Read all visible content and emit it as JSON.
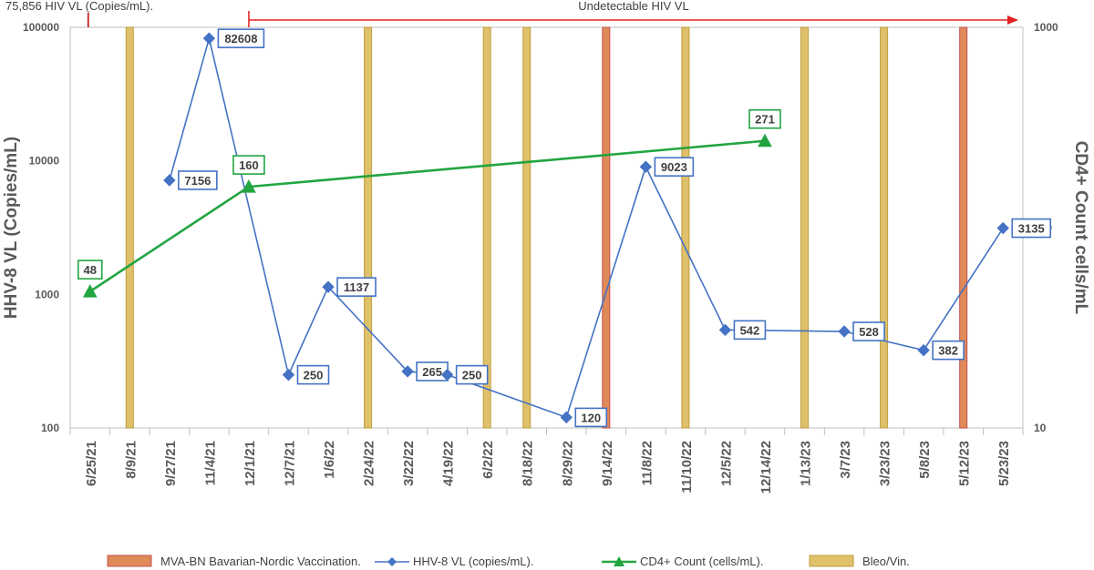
{
  "chart_data": {
    "type": "line",
    "categories": [
      "6/25/21",
      "8/9/21",
      "9/27/21",
      "11/4/21",
      "12/1/21",
      "12/7/21",
      "1/6/22",
      "2/24/22",
      "3/22/22",
      "4/19/22",
      "6/2/22",
      "8/18/22",
      "8/29/22",
      "9/14/22",
      "11/8/22",
      "11/10/22",
      "12/5/22",
      "12/14/22",
      "1/13/23",
      "3/7/23",
      "3/23/23",
      "5/8/23",
      "5/12/23",
      "5/23/23"
    ],
    "ylabel": "HHV-8 VL (Copies/mL)",
    "y2label": "CD4+ Count cells/mL",
    "yscale": "log",
    "ylim": [
      100,
      100000
    ],
    "yticks": [
      "100",
      "1000",
      "10000",
      "100000"
    ],
    "y2scale": "log",
    "y2lim": [
      10,
      1000
    ],
    "y2ticks": [
      "10",
      "100",
      "1000"
    ],
    "grid": false,
    "legend_position": "bottom",
    "series": [
      {
        "name": "HHV-8 VL (copies/mL).",
        "axis": "left",
        "color": "#4472C4",
        "marker": "diamond",
        "points": [
          {
            "x": "9/27/21",
            "y": 7156,
            "label": "7156"
          },
          {
            "x": "11/4/21",
            "y": 82608,
            "label": "82608"
          },
          {
            "x": "12/7/21",
            "y": 250,
            "label": "250"
          },
          {
            "x": "1/6/22",
            "y": 1137,
            "label": "1137"
          },
          {
            "x": "3/22/22",
            "y": 265,
            "label": "265"
          },
          {
            "x": "4/19/22",
            "y": 250,
            "label": "250"
          },
          {
            "x": "8/29/22",
            "y": 120,
            "label": "120"
          },
          {
            "x": "11/8/22",
            "y": 9023,
            "label": "9023"
          },
          {
            "x": "12/5/22",
            "y": 542,
            "label": "542"
          },
          {
            "x": "3/7/23",
            "y": 528,
            "label": "528"
          },
          {
            "x": "5/8/23",
            "y": 382,
            "label": "382"
          },
          {
            "x": "5/23/23",
            "y": 3135,
            "label": "3135"
          }
        ]
      },
      {
        "name": "CD4+ Count  (cells/mL).",
        "axis": "right",
        "color": "#22A541",
        "marker": "triangle",
        "points": [
          {
            "x": "6/25/21",
            "y": 48,
            "label": "48"
          },
          {
            "x": "12/1/21",
            "y": 160,
            "label": "160"
          },
          {
            "x": "12/14/22",
            "y": 271,
            "label": "271"
          }
        ]
      }
    ],
    "vertical_bars": [
      {
        "name": "Bleo/Vin.",
        "color": "#DFC06B",
        "stroke": "#BF9E3C",
        "x": [
          "8/9/21",
          "2/24/22",
          "6/2/22",
          "8/18/22",
          "11/10/22",
          "1/13/23",
          "3/23/23"
        ]
      },
      {
        "name": "MVA-BN Bavarian-Nordic Vaccination.",
        "color": "#E08A5A",
        "stroke": "#C0504D",
        "x": [
          "9/14/22",
          "5/12/23"
        ]
      }
    ],
    "annotations": [
      {
        "text": "75,856 HIV VL (Copies/mL).",
        "x": "6/25/21",
        "color": "#C00000"
      },
      {
        "text": "Undetectable HIV VL",
        "from": "12/1/21",
        "color": "#E02020"
      }
    ],
    "legend": [
      {
        "label": "MVA-BN Bavarian-Nordic Vaccination.",
        "kind": "bar",
        "color": "#E08A5A"
      },
      {
        "label": "HHV-8 VL (copies/mL).",
        "kind": "line-diamond",
        "color": "#4472C4"
      },
      {
        "label": "CD4+ Count  (cells/mL).",
        "kind": "line-triangle",
        "color": "#22A541"
      },
      {
        "label": "Bleo/Vin.",
        "kind": "bar",
        "color": "#DFC06B"
      }
    ]
  }
}
